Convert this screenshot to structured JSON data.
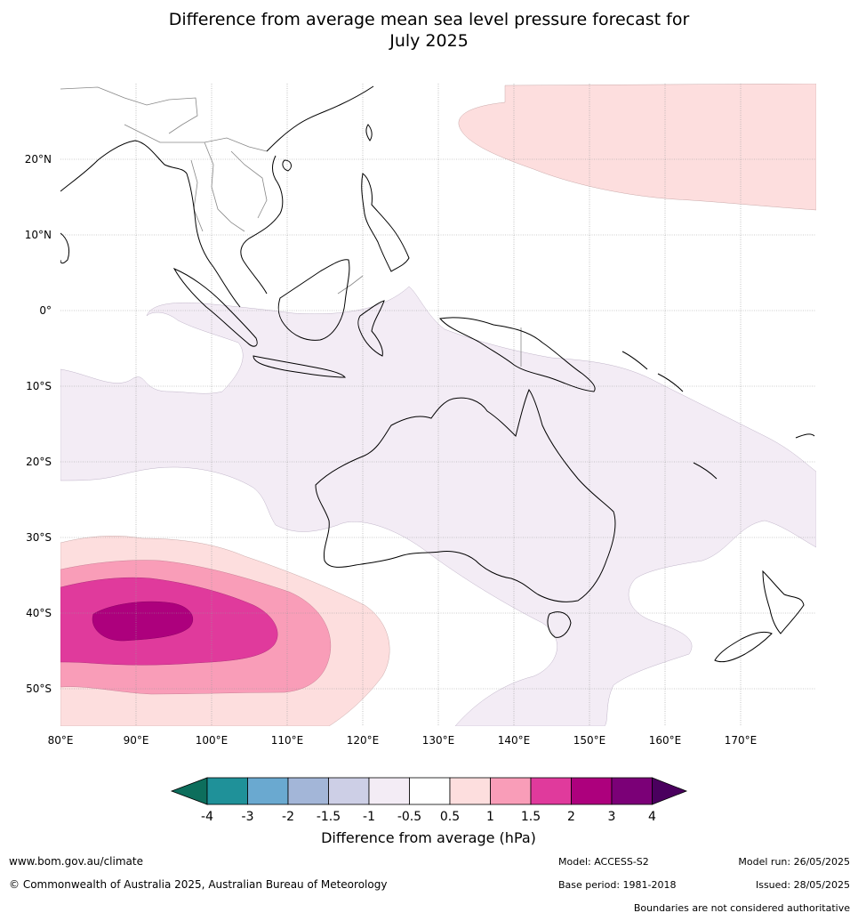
{
  "title_line1": "Difference from average mean sea level pressure forecast for",
  "title_line2": "July 2025",
  "map": {
    "lon_ticks": [
      "80°E",
      "90°E",
      "100°E",
      "110°E",
      "120°E",
      "130°E",
      "140°E",
      "150°E",
      "160°E",
      "170°E"
    ],
    "lat_ticks": [
      "20°N",
      "10°N",
      "0°",
      "10°S",
      "20°S",
      "30°S",
      "40°S",
      "50°S"
    ],
    "lon_range": [
      80,
      180
    ],
    "lat_range": [
      -55,
      30
    ]
  },
  "colorbar": {
    "title": "Difference from average (hPa)",
    "tick_labels": [
      "-4",
      "-3",
      "-2",
      "-1.5",
      "-1",
      "-0.5",
      "0.5",
      "1",
      "1.5",
      "2",
      "3",
      "4"
    ],
    "colors": [
      "#0d6e5c",
      "#1f9199",
      "#6aa9d0",
      "#a3b6d8",
      "#cdcfe6",
      "#f3ecf5",
      "#ffffff",
      "#fddede",
      "#f99db8",
      "#e03a9c",
      "#ad007d",
      "#7b0077",
      "#4a005e"
    ]
  },
  "footer": {
    "website": "www.bom.gov.au/climate",
    "copyright": "© Commonwealth of Australia 2025, Australian Bureau of Meteorology",
    "model": "Model: ACCESS-S2",
    "base_period": "Base period: 1981-2018",
    "model_run": "Model run: 26/05/2025",
    "issued": "Issued: 28/05/2025",
    "disclaimer": "Boundaries are not considered authoritative"
  }
}
